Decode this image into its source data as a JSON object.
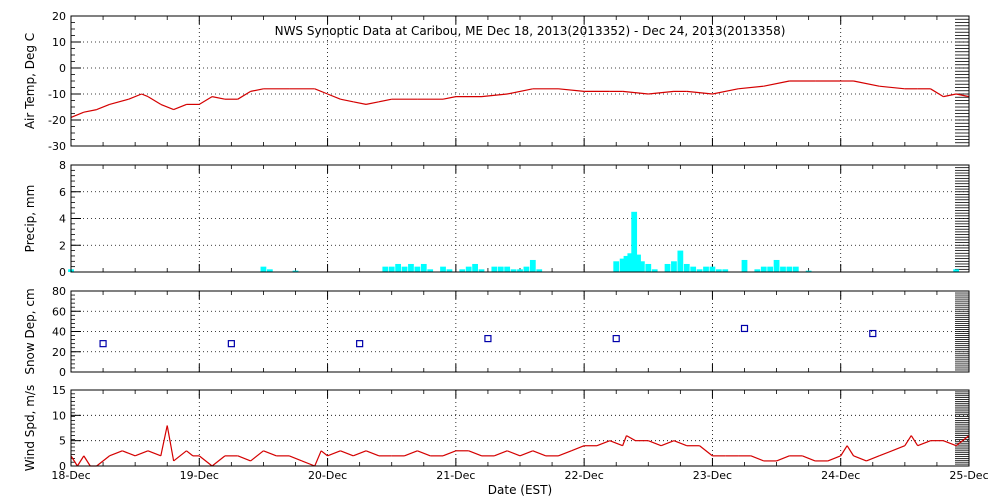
{
  "title": "NWS Synoptic Data at Caribou, ME    Dec 18, 2013(2013352) - Dec 24, 2013(2013358)",
  "xlabel": "Date (EST)",
  "colors": {
    "line": "#d40000",
    "precip_bar": "#00ffff",
    "snow_marker": "#0000aa",
    "axis": "#000000",
    "background": "#ffffff"
  },
  "chart_data": [
    {
      "type": "line",
      "panel": "air-temp",
      "ylabel": "Air Temp, Deg C",
      "ylim": [
        -30,
        20
      ],
      "yticks": [
        -30,
        -20,
        -10,
        0,
        10,
        20
      ],
      "xlim": [
        0,
        7
      ],
      "x_tick_labels": [
        "18-Dec",
        "19-Dec",
        "20-Dec",
        "21-Dec",
        "22-Dec",
        "23-Dec",
        "24-Dec",
        "25-Dec"
      ],
      "grid": true,
      "x": [
        0,
        0.1,
        0.2,
        0.3,
        0.45,
        0.55,
        0.6,
        0.7,
        0.8,
        0.9,
        1.0,
        1.1,
        1.2,
        1.3,
        1.4,
        1.5,
        1.7,
        1.9,
        2.0,
        2.1,
        2.2,
        2.3,
        2.4,
        2.5,
        2.7,
        2.9,
        3.0,
        3.2,
        3.4,
        3.6,
        3.8,
        4.0,
        4.2,
        4.3,
        4.5,
        4.7,
        4.8,
        5.0,
        5.2,
        5.4,
        5.6,
        5.8,
        6.0,
        6.1,
        6.3,
        6.5,
        6.6,
        6.7,
        6.8,
        6.9,
        7.0
      ],
      "values": [
        -19,
        -17,
        -16,
        -14,
        -12,
        -10,
        -11,
        -14,
        -16,
        -14,
        -14,
        -11,
        -12,
        -12,
        -9,
        -8,
        -8,
        -8,
        -10,
        -12,
        -13,
        -14,
        -13,
        -12,
        -12,
        -12,
        -11,
        -11,
        -10,
        -8,
        -8,
        -9,
        -9,
        -9,
        -10,
        -9,
        -9,
        -10,
        -8,
        -7,
        -5,
        -5,
        -5,
        -5,
        -7,
        -8,
        -8,
        -8,
        -11,
        -10,
        -11
      ]
    },
    {
      "type": "bar",
      "panel": "precip",
      "ylabel": "Precip, mm",
      "ylim": [
        0,
        8
      ],
      "yticks": [
        0,
        2,
        4,
        6,
        8
      ],
      "xlim": [
        0,
        7
      ],
      "grid": true,
      "x": [
        0.0,
        1.5,
        1.55,
        1.75,
        2.45,
        2.5,
        2.55,
        2.6,
        2.65,
        2.7,
        2.75,
        2.8,
        2.9,
        2.95,
        3.05,
        3.1,
        3.15,
        3.2,
        3.3,
        3.35,
        3.4,
        3.45,
        3.5,
        3.55,
        3.6,
        3.65,
        4.25,
        4.3,
        4.33,
        4.36,
        4.39,
        4.42,
        4.45,
        4.5,
        4.55,
        4.65,
        4.7,
        4.75,
        4.8,
        4.85,
        4.9,
        4.95,
        5.0,
        5.05,
        5.1,
        5.25,
        5.35,
        5.4,
        5.45,
        5.5,
        5.55,
        5.6,
        5.65,
        5.75,
        6.9
      ],
      "values": [
        0.2,
        0.4,
        0.2,
        0.1,
        0.4,
        0.4,
        0.6,
        0.4,
        0.6,
        0.4,
        0.6,
        0.2,
        0.4,
        0.2,
        0.2,
        0.4,
        0.6,
        0.2,
        0.4,
        0.4,
        0.4,
        0.2,
        0.2,
        0.4,
        0.9,
        0.2,
        0.8,
        1.0,
        1.2,
        1.4,
        4.5,
        1.3,
        0.8,
        0.6,
        0.2,
        0.6,
        0.8,
        1.6,
        0.6,
        0.4,
        0.2,
        0.4,
        0.4,
        0.2,
        0.2,
        0.9,
        0.2,
        0.4,
        0.4,
        0.9,
        0.4,
        0.4,
        0.4,
        0.1,
        0.2
      ]
    },
    {
      "type": "scatter",
      "panel": "snow-depth",
      "ylabel": "Snow Dep, cm",
      "ylim": [
        0,
        80
      ],
      "yticks": [
        0,
        20,
        40,
        60,
        80
      ],
      "xlim": [
        0,
        7
      ],
      "grid": true,
      "x": [
        0.25,
        1.25,
        2.25,
        3.25,
        4.25,
        5.25,
        6.25
      ],
      "values": [
        28,
        28,
        28,
        33,
        33,
        43,
        38
      ]
    },
    {
      "type": "line",
      "panel": "wind-speed",
      "ylabel": "Wind Spd, m/s",
      "ylim": [
        0,
        15
      ],
      "yticks": [
        0,
        5,
        10,
        15
      ],
      "xlim": [
        0,
        7
      ],
      "x_tick_labels": [
        "18-Dec",
        "19-Dec",
        "20-Dec",
        "21-Dec",
        "22-Dec",
        "23-Dec",
        "24-Dec",
        "25-Dec"
      ],
      "grid": true,
      "x": [
        0.0,
        0.05,
        0.1,
        0.15,
        0.2,
        0.3,
        0.4,
        0.5,
        0.6,
        0.7,
        0.75,
        0.8,
        0.9,
        0.95,
        1.0,
        1.1,
        1.2,
        1.3,
        1.4,
        1.5,
        1.6,
        1.7,
        1.8,
        1.9,
        1.95,
        2.0,
        2.1,
        2.2,
        2.3,
        2.4,
        2.5,
        2.6,
        2.7,
        2.8,
        2.9,
        3.0,
        3.1,
        3.2,
        3.3,
        3.4,
        3.5,
        3.6,
        3.7,
        3.8,
        3.9,
        4.0,
        4.1,
        4.2,
        4.3,
        4.33,
        4.4,
        4.5,
        4.6,
        4.7,
        4.8,
        4.9,
        5.0,
        5.1,
        5.2,
        5.3,
        5.4,
        5.5,
        5.6,
        5.7,
        5.8,
        5.9,
        6.0,
        6.05,
        6.1,
        6.2,
        6.3,
        6.4,
        6.5,
        6.55,
        6.6,
        6.7,
        6.8,
        6.9,
        7.0
      ],
      "values": [
        2,
        0,
        2,
        0,
        0,
        2,
        3,
        2,
        3,
        2,
        8,
        1,
        3,
        2,
        2,
        0,
        2,
        2,
        1,
        3,
        2,
        2,
        1,
        0,
        3,
        2,
        3,
        2,
        3,
        2,
        2,
        2,
        3,
        2,
        2,
        3,
        3,
        2,
        2,
        3,
        2,
        3,
        2,
        2,
        3,
        4,
        4,
        5,
        4,
        6,
        5,
        5,
        4,
        5,
        4,
        4,
        2,
        2,
        2,
        2,
        1,
        1,
        2,
        2,
        1,
        1,
        2,
        4,
        2,
        1,
        2,
        3,
        4,
        6,
        4,
        5,
        5,
        4,
        6
      ]
    }
  ]
}
